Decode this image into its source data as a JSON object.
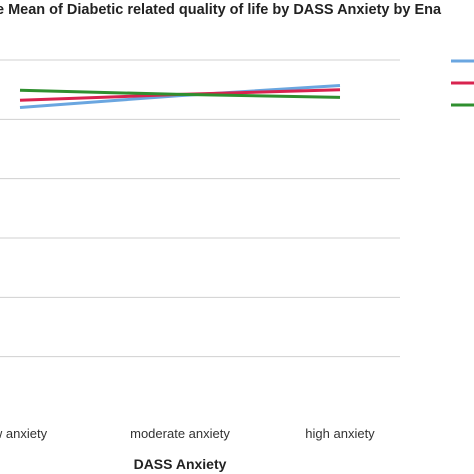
{
  "chart_data": {
    "type": "line",
    "title": "e Mean of Diabetic related quality of life by DASS Anxiety by Ena",
    "xlabel": "DASS Anxiety",
    "ylabel": "",
    "categories": [
      "w anxiety",
      "moderate anxiety",
      "high anxiety"
    ],
    "ylim": [
      0,
      6
    ],
    "grid": true,
    "legend_placement": "right",
    "series": [
      {
        "color": "#6aa6e0",
        "values": [
          5.2,
          5.4,
          5.57
        ]
      },
      {
        "color": "#d8234f",
        "values": [
          5.32,
          5.42,
          5.5
        ]
      },
      {
        "color": "#2f8f2f",
        "values": [
          5.49,
          5.42,
          5.37
        ]
      }
    ]
  }
}
